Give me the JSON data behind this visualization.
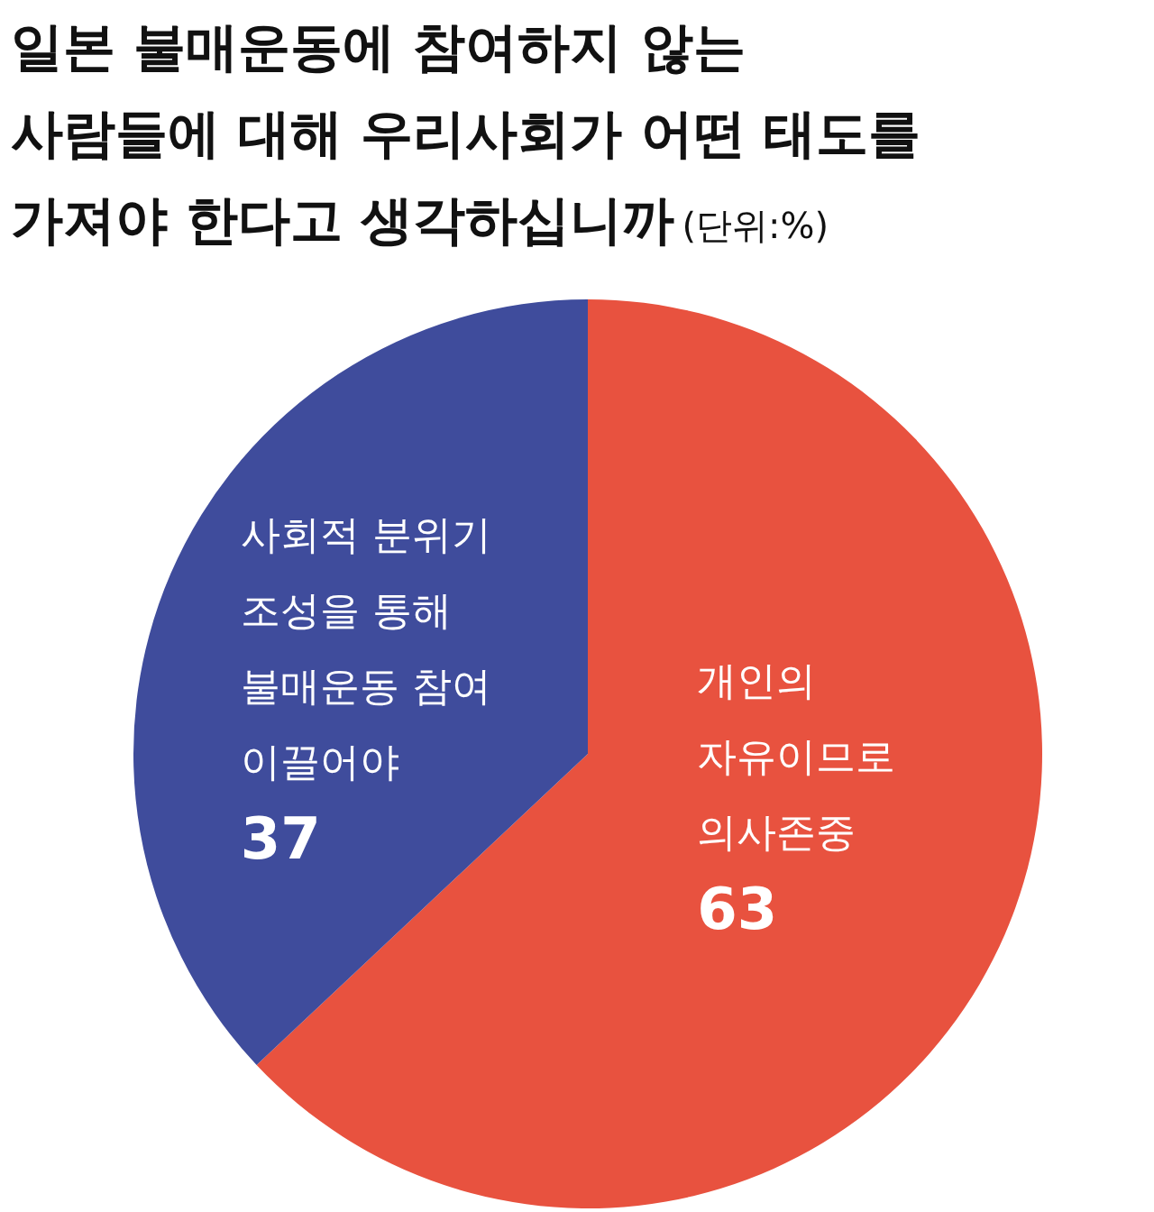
{
  "chart_data": {
    "type": "pie",
    "title": "일본 불매운동에 참여하지 않는\n사람들에 대해 우리사회가 어떤 태도를\n가져야 한다고 생각하십니까",
    "subtitle": "(단위:%)",
    "categories": [
      "개인의\n자유이므로\n의사존중",
      "사회적 분위기\n조성을 통해\n불매운동 참여\n이끌어야"
    ],
    "values": [
      63,
      37
    ],
    "colors": [
      "#e8523f",
      "#3f4c9c"
    ],
    "data_labels": true
  }
}
